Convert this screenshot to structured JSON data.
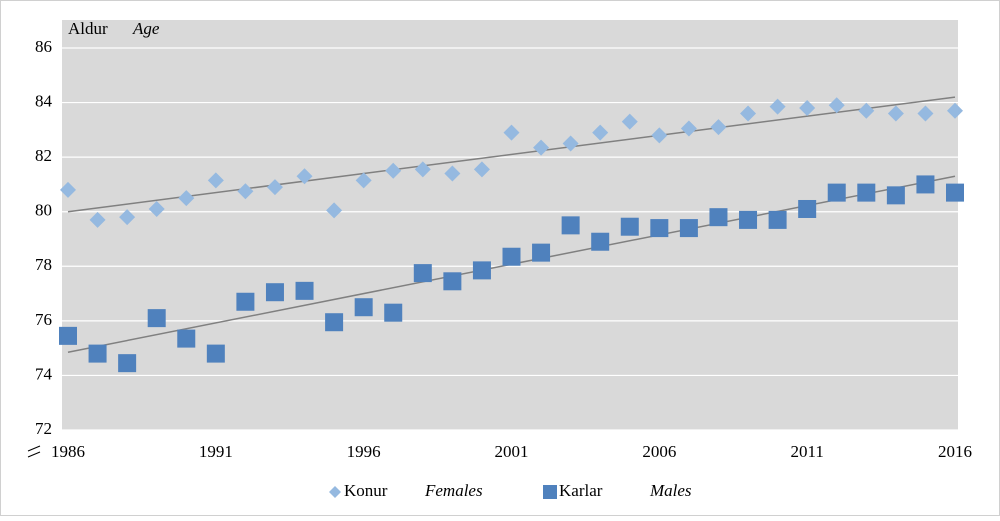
{
  "chart_data": {
    "type": "scatter",
    "ylabel": "Aldur",
    "ylabel_en": "Age",
    "x": [
      1986,
      1987,
      1988,
      1989,
      1990,
      1991,
      1992,
      1993,
      1994,
      1995,
      1996,
      1997,
      1998,
      1999,
      2000,
      2001,
      2002,
      2003,
      2004,
      2005,
      2006,
      2007,
      2008,
      2009,
      2010,
      2011,
      2012,
      2013,
      2014,
      2015,
      2016
    ],
    "series": [
      {
        "name": "Konur",
        "name_en": "Females",
        "marker": "diamond",
        "color": "#95b9e0",
        "values": [
          80.8,
          79.7,
          79.8,
          80.1,
          80.5,
          81.15,
          80.75,
          80.9,
          81.3,
          80.05,
          81.15,
          81.5,
          81.55,
          81.4,
          81.55,
          82.9,
          82.35,
          82.5,
          82.9,
          83.3,
          82.8,
          83.05,
          83.1,
          83.6,
          83.85,
          83.8,
          83.9,
          83.7,
          83.6,
          83.6,
          83.7
        ],
        "trend": [
          80.0,
          84.2
        ]
      },
      {
        "name": "Karlar",
        "name_en": "Males",
        "marker": "square",
        "color": "#4f81bd",
        "values": [
          75.45,
          74.8,
          74.45,
          76.1,
          75.35,
          74.8,
          76.7,
          77.05,
          77.1,
          75.95,
          76.5,
          76.3,
          77.75,
          77.45,
          77.85,
          78.35,
          78.5,
          79.5,
          78.9,
          79.45,
          79.4,
          79.4,
          79.8,
          79.7,
          79.7,
          80.1,
          80.7,
          80.7,
          80.6,
          81.0,
          80.7
        ],
        "trend": [
          74.85,
          81.3
        ]
      }
    ],
    "trend_color": "#808080",
    "xlim": [
      1986,
      2016
    ],
    "xticks": [
      1986,
      1991,
      1996,
      2001,
      2006,
      2011,
      2016
    ],
    "ylim": [
      72,
      86
    ],
    "yticks": [
      72,
      74,
      76,
      78,
      80,
      82,
      84,
      86
    ],
    "grid": true
  }
}
